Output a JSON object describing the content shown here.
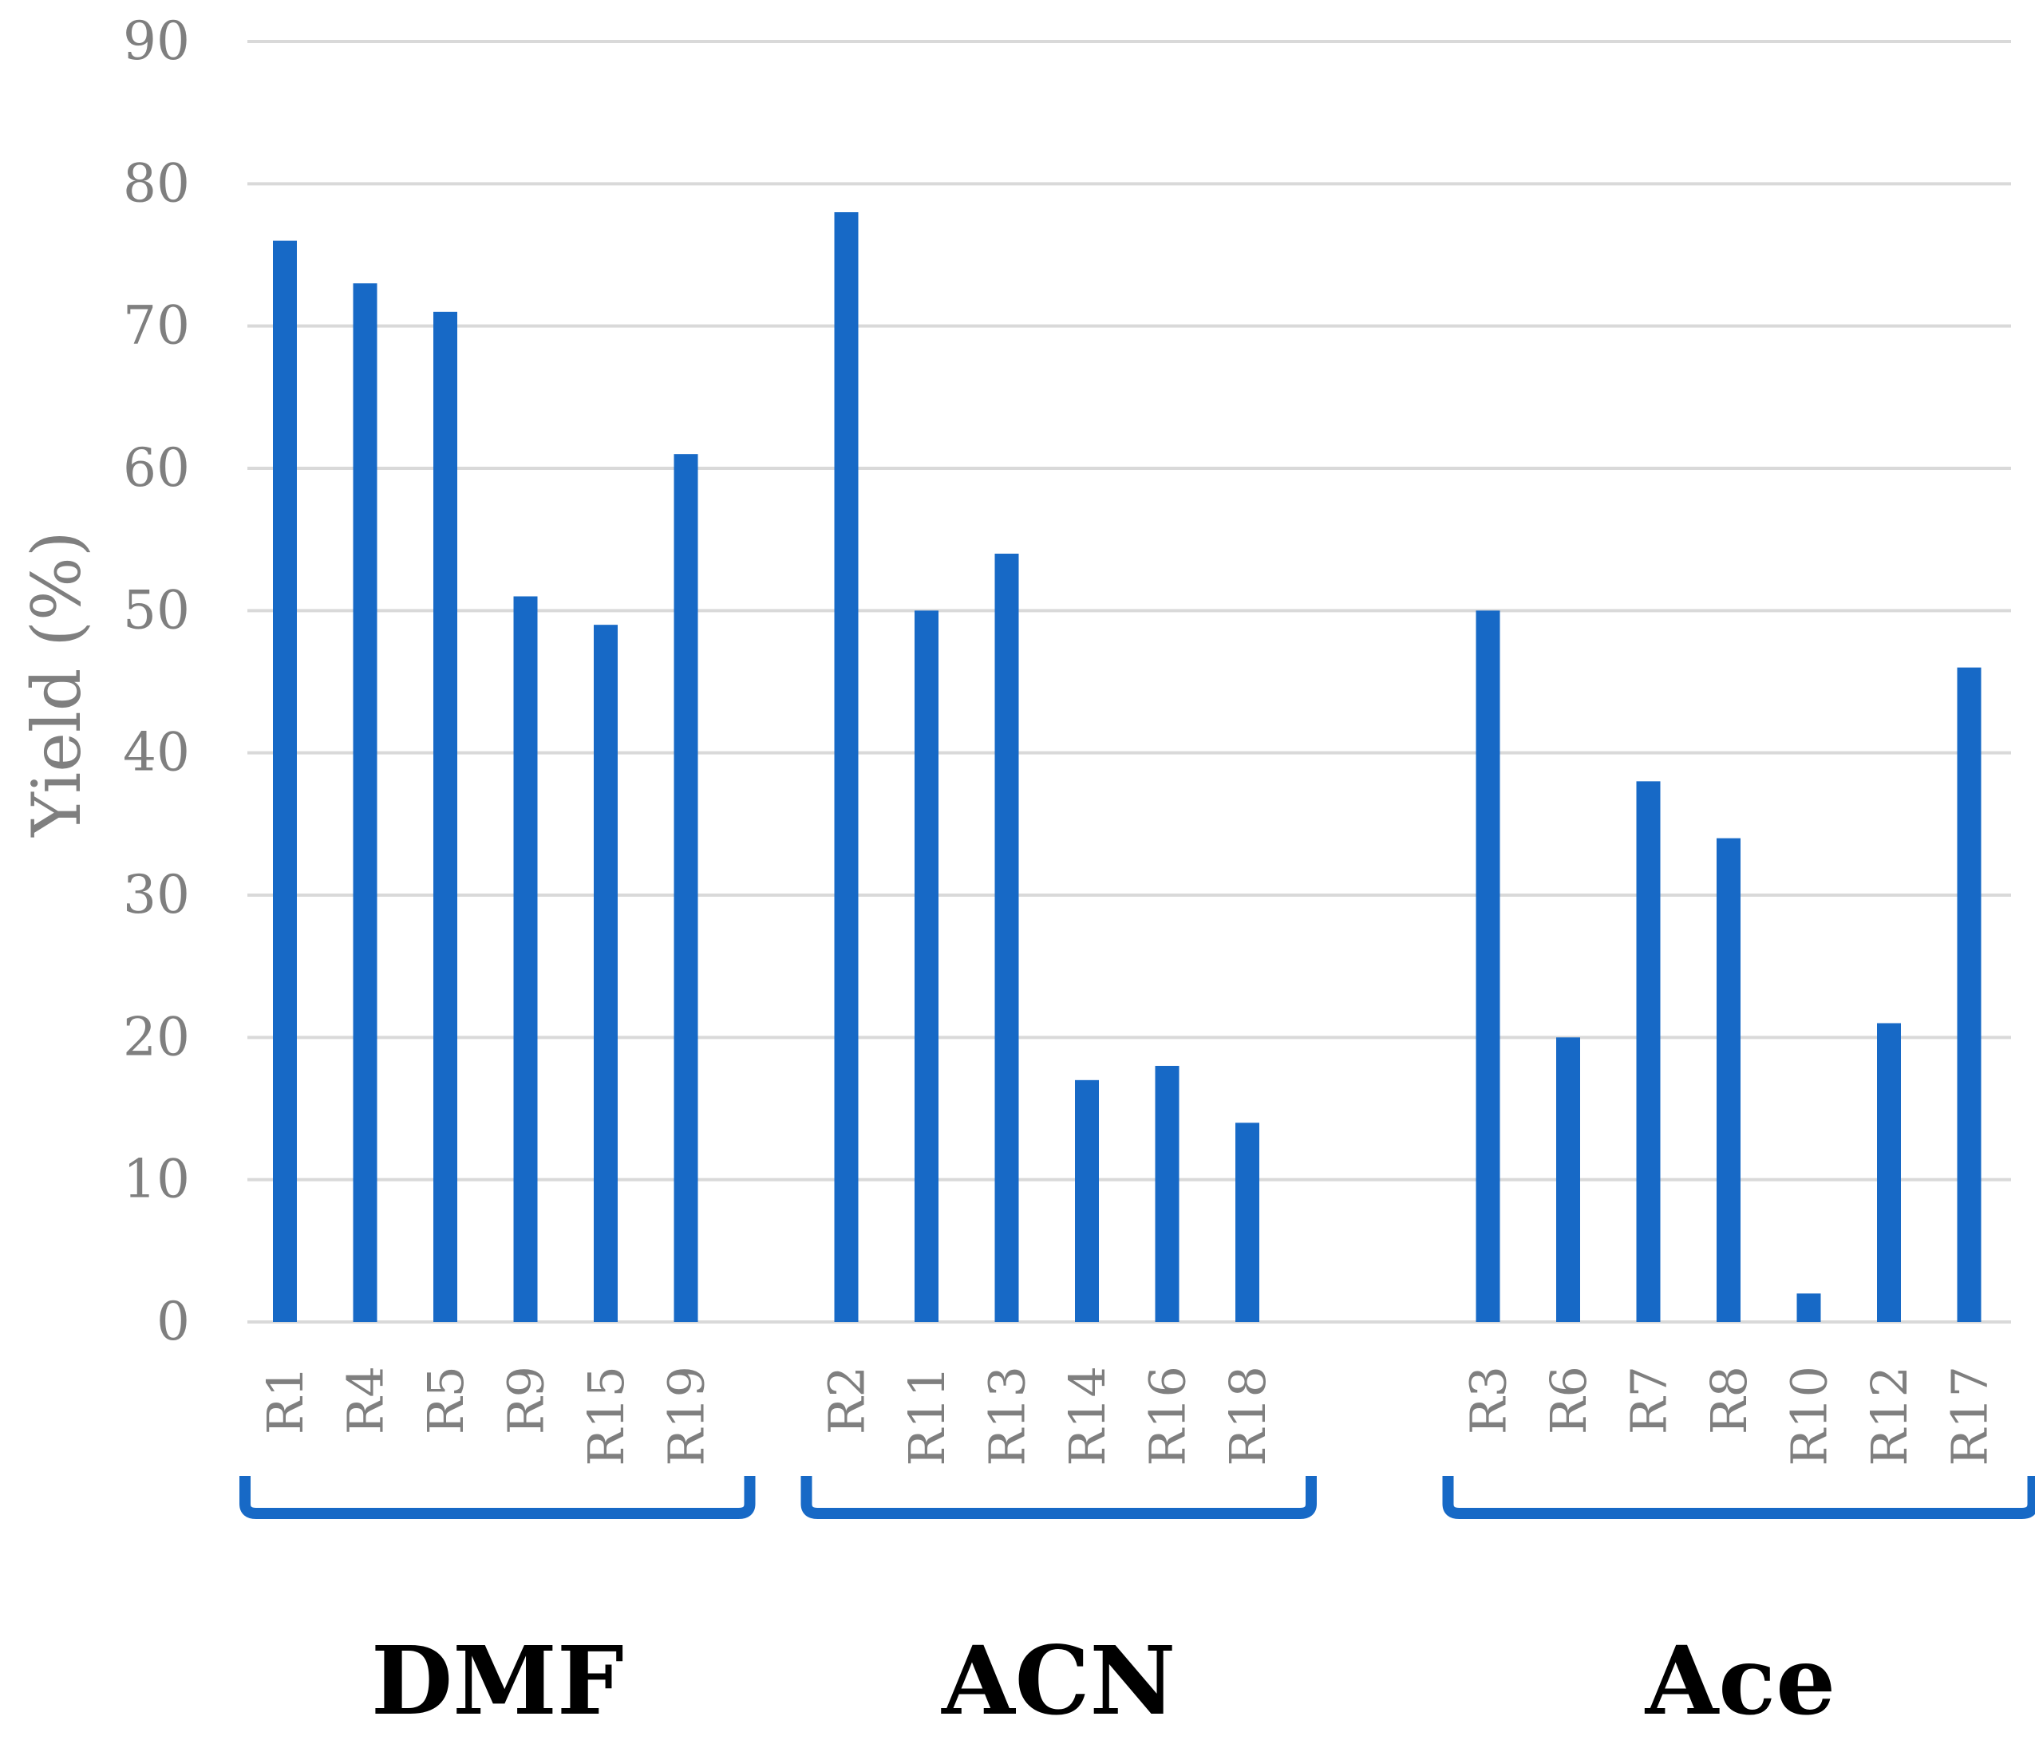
{
  "chart_data": {
    "type": "bar",
    "title": "",
    "xlabel": "",
    "ylabel": "Yield (%)",
    "ylim": [
      0,
      90
    ],
    "yticks": [
      0,
      10,
      20,
      30,
      40,
      50,
      60,
      70,
      80,
      90
    ],
    "grid": true,
    "bar_color": "#1769c6",
    "grid_color": "#d9d9d9",
    "groups": [
      {
        "name": "DMF",
        "categories": [
          "R1",
          "R4",
          "R5",
          "R9",
          "R15",
          "R19"
        ],
        "values": [
          76,
          73,
          71,
          51,
          49,
          61
        ]
      },
      {
        "name": "ACN",
        "categories": [
          "R2",
          "R11",
          "R13",
          "R14",
          "R16",
          "R18"
        ],
        "values": [
          78,
          50,
          54,
          17,
          18,
          14
        ]
      },
      {
        "name": "Ace",
        "categories": [
          "R3",
          "R6",
          "R7",
          "R8",
          "R10",
          "R12",
          "R17"
        ],
        "values": [
          50,
          20,
          38,
          34,
          2,
          21,
          46
        ]
      }
    ]
  }
}
